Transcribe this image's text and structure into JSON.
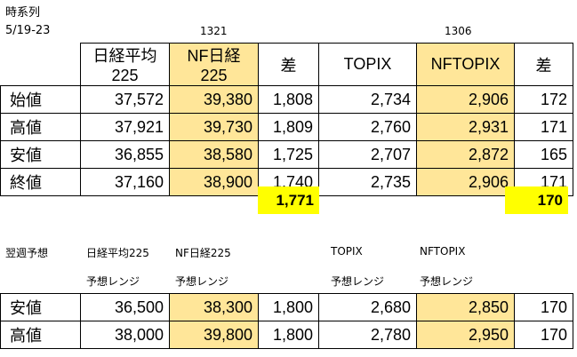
{
  "title": "時系列",
  "date_range": "5/19-23",
  "code_left": "1321",
  "code_right": "1306",
  "headers": [
    "日経平均225",
    "NF日経225",
    "差",
    "TOPIX",
    "NFTOPIX",
    "差"
  ],
  "rows": [
    {
      "label": "始値",
      "values": [
        "37,572",
        "39,380",
        "1,808",
        "2,734",
        "2,906",
        "172"
      ]
    },
    {
      "label": "高値",
      "values": [
        "37,921",
        "39,730",
        "1,809",
        "2,760",
        "2,931",
        "171"
      ]
    },
    {
      "label": "安値",
      "values": [
        "36,855",
        "38,580",
        "1,725",
        "2,707",
        "2,872",
        "165"
      ]
    },
    {
      "label": "終値",
      "values": [
        "37,160",
        "38,900",
        "1,740",
        "2,735",
        "2,906",
        "171"
      ]
    }
  ],
  "avg_diff_nikkei": "1,771",
  "avg_diff_topix": "170",
  "forecast": {
    "title": "翌週予想",
    "nikkei_label": "日経平均225",
    "nf_nikkei_label": "NF日経225",
    "topix_label": "TOPIX",
    "nftopix_label": "NFTOPIX",
    "range_label": "予想レンジ",
    "rows": [
      {
        "label": "安値",
        "values": [
          "36,500",
          "38,300",
          "1,800",
          "2,680",
          "2,850",
          "170"
        ]
      },
      {
        "label": "高値",
        "values": [
          "38,000",
          "39,800",
          "1,800",
          "2,780",
          "2,950",
          "170"
        ]
      }
    ]
  }
}
